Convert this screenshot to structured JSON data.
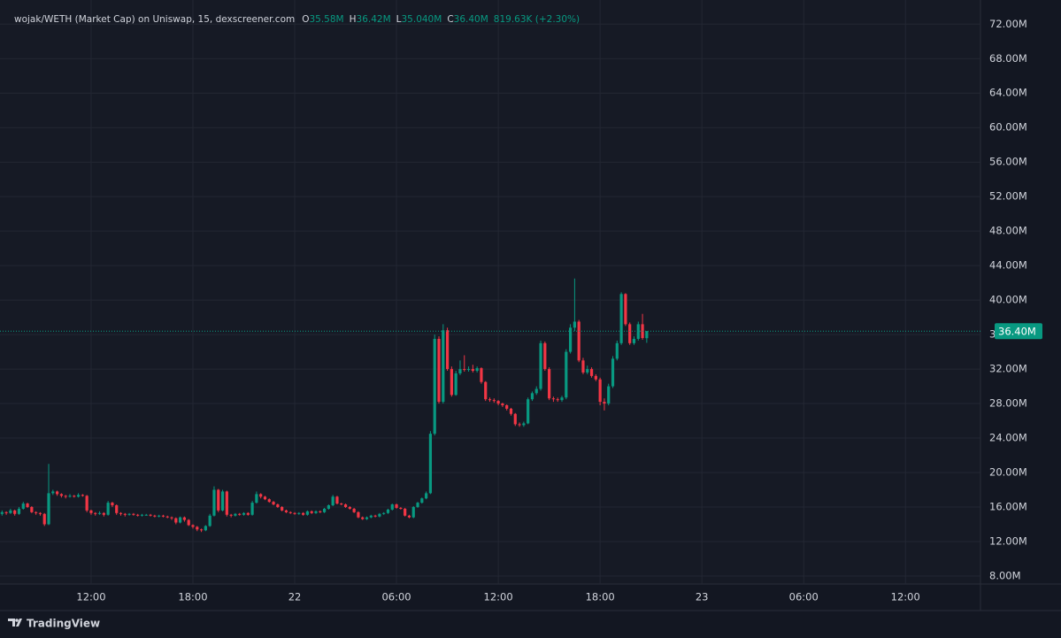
{
  "chart_data": {
    "type": "candlestick",
    "title": "wojak/WETH (Market Cap) on Uniswap, 15, dexscreener.com",
    "legend": {
      "items": [
        {
          "key": "O",
          "label": "35.58M"
        },
        {
          "key": "H",
          "label": "36.42M"
        },
        {
          "key": "L",
          "label": "35.040M"
        },
        {
          "key": "C",
          "label": "36.40M"
        }
      ],
      "change": "819.63K (+2.30%)"
    },
    "brand": "TradingView",
    "up_color": "#089981",
    "down_color": "#f23645",
    "grid": true,
    "last_price": {
      "value": 36.4,
      "label": "36.40M"
    },
    "xlim": [
      6.63,
      64.42
    ],
    "xticks": [
      {
        "value": 12,
        "label": "12:00"
      },
      {
        "value": 18,
        "label": "18:00"
      },
      {
        "value": 24,
        "label": "22"
      },
      {
        "value": 30,
        "label": "06:00"
      },
      {
        "value": 36,
        "label": "12:00"
      },
      {
        "value": 42,
        "label": "18:00"
      },
      {
        "value": 48,
        "label": "23"
      },
      {
        "value": 54,
        "label": "06:00"
      },
      {
        "value": 60,
        "label": "12:00"
      }
    ],
    "ylim": [
      7.07,
      74.8
    ],
    "yticks": [
      {
        "value": 8,
        "label": "8.00M"
      },
      {
        "value": 12,
        "label": "12.00M"
      },
      {
        "value": 16,
        "label": "16.00M"
      },
      {
        "value": 20,
        "label": "20.00M"
      },
      {
        "value": 24,
        "label": "24.00M"
      },
      {
        "value": 28,
        "label": "28.00M"
      },
      {
        "value": 32,
        "label": "32.00M"
      },
      {
        "value": 36,
        "label": "36.00M"
      },
      {
        "value": 40,
        "label": "40.00M"
      },
      {
        "value": 44,
        "label": "44.00M"
      },
      {
        "value": 48,
        "label": "48.00M"
      },
      {
        "value": 52,
        "label": "52.00M"
      },
      {
        "value": 56,
        "label": "56.00M"
      },
      {
        "value": 60,
        "label": "60.00M"
      },
      {
        "value": 64,
        "label": "64.00M"
      },
      {
        "value": 68,
        "label": "68.00M"
      },
      {
        "value": 72,
        "label": "72.00M"
      }
    ],
    "x": [
      6.75,
      7,
      7.25,
      7.5,
      7.75,
      8,
      8.25,
      8.5,
      8.75,
      9,
      9.25,
      9.5,
      9.75,
      10,
      10.25,
      10.5,
      10.75,
      11,
      11.25,
      11.5,
      11.75,
      12,
      12.25,
      12.5,
      12.75,
      13,
      13.25,
      13.5,
      13.75,
      14,
      14.25,
      14.5,
      14.75,
      15,
      15.25,
      15.5,
      15.75,
      16,
      16.25,
      16.5,
      16.75,
      17,
      17.25,
      17.5,
      17.75,
      18,
      18.25,
      18.5,
      18.75,
      19,
      19.25,
      19.5,
      19.75,
      20,
      20.25,
      20.5,
      20.75,
      21,
      21.25,
      21.5,
      21.75,
      22,
      22.25,
      22.5,
      22.75,
      23,
      23.25,
      23.5,
      23.75,
      24,
      24.25,
      24.5,
      24.75,
      25,
      25.25,
      25.5,
      25.75,
      26,
      26.25,
      26.5,
      26.75,
      27,
      27.25,
      27.5,
      27.75,
      28,
      28.25,
      28.5,
      28.75,
      29,
      29.25,
      29.5,
      29.75,
      30,
      30.25,
      30.5,
      30.75,
      31,
      31.25,
      31.5,
      31.75,
      32,
      32.25,
      32.5,
      32.75,
      33,
      33.25,
      33.5,
      33.75,
      34,
      34.25,
      34.5,
      34.75,
      35,
      35.25,
      35.5,
      35.75,
      36,
      36.25,
      36.5,
      36.75,
      37,
      37.25,
      37.5,
      37.75,
      38,
      38.25,
      38.5,
      38.75,
      39,
      39.25,
      39.5,
      39.75,
      40,
      40.25,
      40.5,
      40.75,
      41,
      41.25,
      41.5,
      41.75,
      42,
      42.25,
      42.5,
      42.75,
      43,
      43.25,
      43.5,
      43.75,
      44,
      44.25,
      44.5,
      44.75
    ],
    "ohlc": [
      [
        15.2,
        15.6,
        15.0,
        15.4
      ],
      [
        15.4,
        15.5,
        15.1,
        15.3
      ],
      [
        15.3,
        15.8,
        15.2,
        15.6
      ],
      [
        15.6,
        15.7,
        15.0,
        15.2
      ],
      [
        15.2,
        16.0,
        15.1,
        15.8
      ],
      [
        15.8,
        16.6,
        15.7,
        16.4
      ],
      [
        16.4,
        16.5,
        15.9,
        16.0
      ],
      [
        16.0,
        16.1,
        15.3,
        15.4
      ],
      [
        15.4,
        15.5,
        15.1,
        15.3
      ],
      [
        15.3,
        15.4,
        15.0,
        15.2
      ],
      [
        15.2,
        15.3,
        13.8,
        14.0
      ],
      [
        14.0,
        21.0,
        13.9,
        17.6
      ],
      [
        17.6,
        18.0,
        17.4,
        17.8
      ],
      [
        17.8,
        17.9,
        17.3,
        17.5
      ],
      [
        17.5,
        17.6,
        17.1,
        17.3
      ],
      [
        17.3,
        17.4,
        17.0,
        17.2
      ],
      [
        17.2,
        17.5,
        17.1,
        17.3
      ],
      [
        17.3,
        17.4,
        17.1,
        17.2
      ],
      [
        17.2,
        17.6,
        17.1,
        17.4
      ],
      [
        17.4,
        17.5,
        17.2,
        17.3
      ],
      [
        17.3,
        17.4,
        15.4,
        15.6
      ],
      [
        15.6,
        15.7,
        15.1,
        15.3
      ],
      [
        15.3,
        15.4,
        15.0,
        15.2
      ],
      [
        15.2,
        15.5,
        15.1,
        15.3
      ],
      [
        15.3,
        15.4,
        14.9,
        15.1
      ],
      [
        15.1,
        16.7,
        15.0,
        16.5
      ],
      [
        16.5,
        16.6,
        16.0,
        16.2
      ],
      [
        16.2,
        16.3,
        15.1,
        15.3
      ],
      [
        15.3,
        15.4,
        15.0,
        15.2
      ],
      [
        15.2,
        15.3,
        14.9,
        15.1
      ],
      [
        15.1,
        15.3,
        15.0,
        15.2
      ],
      [
        15.2,
        15.3,
        15.0,
        15.1
      ],
      [
        15.1,
        15.2,
        14.9,
        15.0
      ],
      [
        15.0,
        15.2,
        14.9,
        15.1
      ],
      [
        15.1,
        15.2,
        15.0,
        15.1
      ],
      [
        15.1,
        15.2,
        14.9,
        15.0
      ],
      [
        15.0,
        15.1,
        14.8,
        14.9
      ],
      [
        14.9,
        15.1,
        14.8,
        15.0
      ],
      [
        15.0,
        15.1,
        14.8,
        14.9
      ],
      [
        14.9,
        15.0,
        14.7,
        14.8
      ],
      [
        14.8,
        14.9,
        14.5,
        14.7
      ],
      [
        14.7,
        14.8,
        14.0,
        14.2
      ],
      [
        14.2,
        14.9,
        14.1,
        14.8
      ],
      [
        14.8,
        14.9,
        14.3,
        14.5
      ],
      [
        14.5,
        14.6,
        13.8,
        13.9
      ],
      [
        13.9,
        14.0,
        13.5,
        13.7
      ],
      [
        13.7,
        13.8,
        13.2,
        13.4
      ],
      [
        13.4,
        13.5,
        13.1,
        13.3
      ],
      [
        13.3,
        13.9,
        13.2,
        13.8
      ],
      [
        13.8,
        15.2,
        13.7,
        15.0
      ],
      [
        15.0,
        18.4,
        14.9,
        18.0
      ],
      [
        18.0,
        18.1,
        15.4,
        15.6
      ],
      [
        15.6,
        18.0,
        15.5,
        17.8
      ],
      [
        17.8,
        17.9,
        14.9,
        15.1
      ],
      [
        15.1,
        15.2,
        14.8,
        15.0
      ],
      [
        15.0,
        15.3,
        14.9,
        15.2
      ],
      [
        15.2,
        15.3,
        15.0,
        15.1
      ],
      [
        15.1,
        15.4,
        15.0,
        15.3
      ],
      [
        15.3,
        15.4,
        15.0,
        15.1
      ],
      [
        15.1,
        16.7,
        15.0,
        16.5
      ],
      [
        16.5,
        17.8,
        16.4,
        17.5
      ],
      [
        17.5,
        17.6,
        17.0,
        17.2
      ],
      [
        17.2,
        17.3,
        16.8,
        16.9
      ],
      [
        16.9,
        17.0,
        16.5,
        16.6
      ],
      [
        16.6,
        16.7,
        16.2,
        16.3
      ],
      [
        16.3,
        16.4,
        15.9,
        16.0
      ],
      [
        16.0,
        16.1,
        15.5,
        15.6
      ],
      [
        15.6,
        15.7,
        15.3,
        15.4
      ],
      [
        15.4,
        15.5,
        15.2,
        15.3
      ],
      [
        15.3,
        15.4,
        15.1,
        15.2
      ],
      [
        15.2,
        15.4,
        15.1,
        15.3
      ],
      [
        15.3,
        15.4,
        15.0,
        15.1
      ],
      [
        15.1,
        15.6,
        15.0,
        15.5
      ],
      [
        15.5,
        15.6,
        15.2,
        15.3
      ],
      [
        15.3,
        15.6,
        15.2,
        15.5
      ],
      [
        15.5,
        15.6,
        15.3,
        15.4
      ],
      [
        15.4,
        15.9,
        15.3,
        15.8
      ],
      [
        15.8,
        16.3,
        15.7,
        16.2
      ],
      [
        16.2,
        17.4,
        16.1,
        17.2
      ],
      [
        17.2,
        17.3,
        16.3,
        16.4
      ],
      [
        16.4,
        16.5,
        16.2,
        16.3
      ],
      [
        16.3,
        16.4,
        15.9,
        16.0
      ],
      [
        16.0,
        16.1,
        15.7,
        15.8
      ],
      [
        15.8,
        15.9,
        15.3,
        15.4
      ],
      [
        15.4,
        15.5,
        14.7,
        14.8
      ],
      [
        14.8,
        14.9,
        14.5,
        14.6
      ],
      [
        14.6,
        14.9,
        14.5,
        14.8
      ],
      [
        14.8,
        15.1,
        14.7,
        15.0
      ],
      [
        15.0,
        15.1,
        14.8,
        14.9
      ],
      [
        14.9,
        15.3,
        14.8,
        15.2
      ],
      [
        15.2,
        15.4,
        15.1,
        15.3
      ],
      [
        15.3,
        15.8,
        15.2,
        15.7
      ],
      [
        15.7,
        16.4,
        15.6,
        16.3
      ],
      [
        16.3,
        16.4,
        15.8,
        15.9
      ],
      [
        15.9,
        16.0,
        15.7,
        15.8
      ],
      [
        15.8,
        15.9,
        14.9,
        15.0
      ],
      [
        15.0,
        15.1,
        14.7,
        14.8
      ],
      [
        14.8,
        16.1,
        14.7,
        16.0
      ],
      [
        16.0,
        16.6,
        15.9,
        16.5
      ],
      [
        16.5,
        17.1,
        16.4,
        17.0
      ],
      [
        17.0,
        17.8,
        16.9,
        17.6
      ],
      [
        17.6,
        24.8,
        17.5,
        24.5
      ],
      [
        24.5,
        36.0,
        24.3,
        35.5
      ],
      [
        35.5,
        35.8,
        28.0,
        28.2
      ],
      [
        28.2,
        37.2,
        28.0,
        36.5
      ],
      [
        36.5,
        36.8,
        31.8,
        32.0
      ],
      [
        32.0,
        32.3,
        28.8,
        29.0
      ],
      [
        29.0,
        31.8,
        28.9,
        31.5
      ],
      [
        31.5,
        33.0,
        31.3,
        32.0
      ],
      [
        32.0,
        33.6,
        31.7,
        31.9
      ],
      [
        31.9,
        32.3,
        31.7,
        32.0
      ],
      [
        32.0,
        32.5,
        31.6,
        31.8
      ],
      [
        31.8,
        32.3,
        31.6,
        32.1
      ],
      [
        32.1,
        32.2,
        30.3,
        30.5
      ],
      [
        30.5,
        30.6,
        28.3,
        28.5
      ],
      [
        28.5,
        28.7,
        28.2,
        28.4
      ],
      [
        28.4,
        28.6,
        28.1,
        28.3
      ],
      [
        28.3,
        28.4,
        27.8,
        28.0
      ],
      [
        28.0,
        28.1,
        27.6,
        27.8
      ],
      [
        27.8,
        27.9,
        27.2,
        27.4
      ],
      [
        27.4,
        27.5,
        26.6,
        26.8
      ],
      [
        26.8,
        26.9,
        25.4,
        25.6
      ],
      [
        25.6,
        25.8,
        25.3,
        25.5
      ],
      [
        25.5,
        25.9,
        25.3,
        25.7
      ],
      [
        25.7,
        28.7,
        25.6,
        28.5
      ],
      [
        28.5,
        29.4,
        28.3,
        29.2
      ],
      [
        29.2,
        30.0,
        29.0,
        29.7
      ],
      [
        29.7,
        35.3,
        29.5,
        35.0
      ],
      [
        35.0,
        35.2,
        31.8,
        32.0
      ],
      [
        32.0,
        32.2,
        28.4,
        28.6
      ],
      [
        28.6,
        28.8,
        28.2,
        28.5
      ],
      [
        28.5,
        28.7,
        28.2,
        28.4
      ],
      [
        28.4,
        28.9,
        28.2,
        28.7
      ],
      [
        28.7,
        34.3,
        28.5,
        34.0
      ],
      [
        34.0,
        37.2,
        33.8,
        36.8
      ],
      [
        36.8,
        42.5,
        36.4,
        37.5
      ],
      [
        37.5,
        37.7,
        32.8,
        33.0
      ],
      [
        33.0,
        33.3,
        31.4,
        31.6
      ],
      [
        31.6,
        32.4,
        31.4,
        32.0
      ],
      [
        32.0,
        32.2,
        31.0,
        31.2
      ],
      [
        31.2,
        31.4,
        30.6,
        30.8
      ],
      [
        30.8,
        31.0,
        27.8,
        28.2
      ],
      [
        28.2,
        28.6,
        27.2,
        28.0
      ],
      [
        28.0,
        30.3,
        27.8,
        30.0
      ],
      [
        30.0,
        33.5,
        29.8,
        33.2
      ],
      [
        33.2,
        35.3,
        33.0,
        35.0
      ],
      [
        35.0,
        40.9,
        34.8,
        40.7
      ],
      [
        40.7,
        40.8,
        37.0,
        37.2
      ],
      [
        37.2,
        37.4,
        34.8,
        35.0
      ],
      [
        35.0,
        35.8,
        34.8,
        35.5
      ],
      [
        35.5,
        37.5,
        35.3,
        37.2
      ],
      [
        37.2,
        38.4,
        35.4,
        35.6
      ],
      [
        35.58,
        36.42,
        35.04,
        36.4
      ]
    ]
  }
}
